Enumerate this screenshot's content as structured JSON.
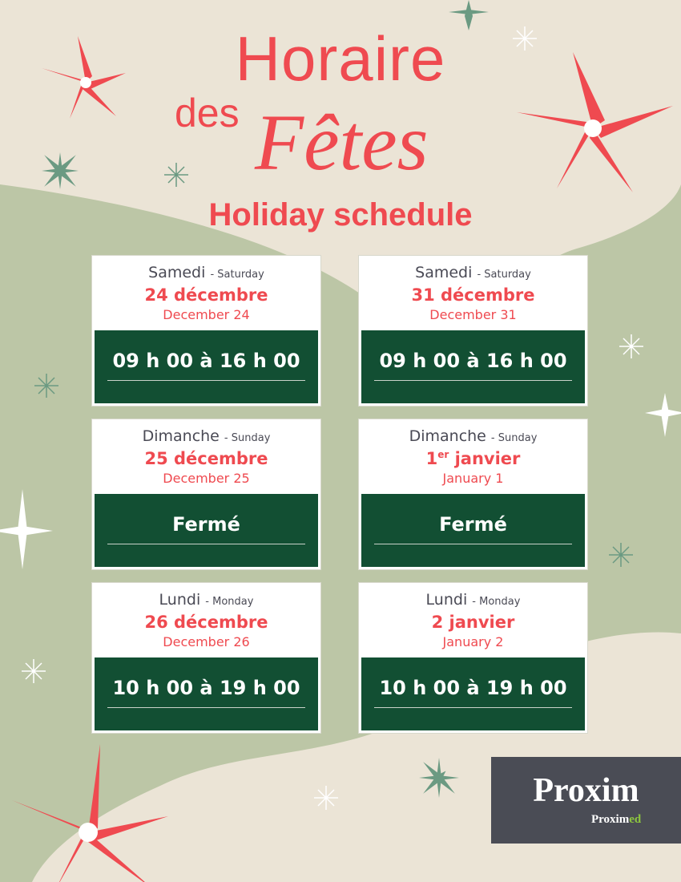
{
  "header": {
    "title_line1": "Horaire",
    "title_des": "des",
    "title_fetes": "Fêtes",
    "subtitle": "Holiday schedule"
  },
  "colors": {
    "background": "#ebe4d6",
    "green_shape": "#bcc6a6",
    "accent_red": "#ef4a50",
    "panel_green": "#124f33",
    "logo_bg": "#4a4c55",
    "logo_green": "#8dc63f"
  },
  "cards": [
    {
      "day_fr": "Samedi",
      "day_en": "- Saturday",
      "date_fr": "24 décembre",
      "date_sup": "",
      "date_fr_rest": "",
      "date_en": "December 24",
      "hours": "09 h 00 à 16 h 00"
    },
    {
      "day_fr": "Samedi",
      "day_en": "- Saturday",
      "date_fr": "31 décembre",
      "date_sup": "",
      "date_fr_rest": "",
      "date_en": "December 31",
      "hours": "09 h 00 à 16 h 00"
    },
    {
      "day_fr": "Dimanche",
      "day_en": "- Sunday",
      "date_fr": "25 décembre",
      "date_sup": "",
      "date_fr_rest": "",
      "date_en": "December 25",
      "hours": "Fermé"
    },
    {
      "day_fr": "Dimanche",
      "day_en": "- Sunday",
      "date_fr": "1",
      "date_sup": "er",
      "date_fr_rest": " janvier",
      "date_en": "January 1",
      "hours": "Fermé"
    },
    {
      "day_fr": "Lundi",
      "day_en": "- Monday",
      "date_fr": "26 décembre",
      "date_sup": "",
      "date_fr_rest": "",
      "date_en": "December 26",
      "hours": "10 h 00 à 19 h 00"
    },
    {
      "day_fr": "Lundi",
      "day_en": "- Monday",
      "date_fr": "2 janvier",
      "date_sup": "",
      "date_fr_rest": "",
      "date_en": "January 2",
      "hours": "10 h 00 à 19 h 00"
    }
  ],
  "logo": {
    "main": "Proxim",
    "sub_a": "Proxim",
    "sub_b": "ed"
  },
  "icons": [
    "poinsettia-icon",
    "snowflake-icon",
    "sparkle-icon"
  ]
}
